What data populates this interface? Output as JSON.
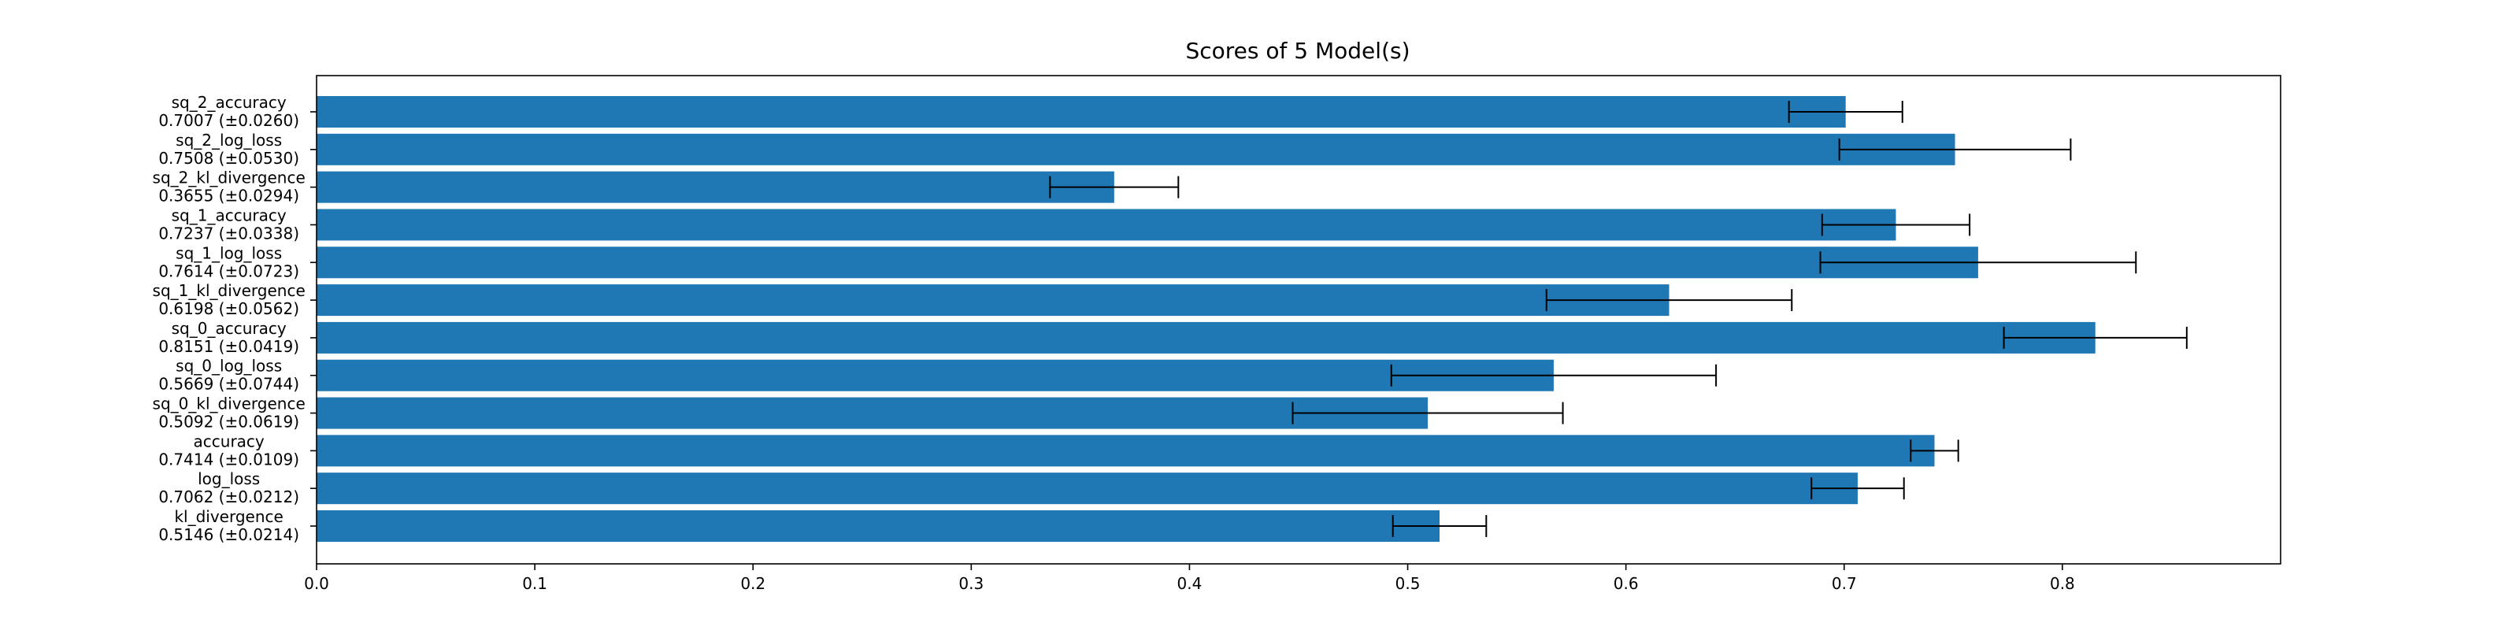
{
  "chart_data": {
    "type": "bar",
    "orientation": "horizontal",
    "title": "Scores of 5 Model(s)",
    "xlabel": "",
    "ylabel": "",
    "xlim": [
      0.0,
      0.9
    ],
    "x_ticks": [
      "0.0",
      "0.1",
      "0.2",
      "0.3",
      "0.4",
      "0.5",
      "0.6",
      "0.7",
      "0.8"
    ],
    "grid": false,
    "bar_color": "#1f77b4",
    "bars": [
      {
        "label": "sq_2_accuracy",
        "value_label": "0.7007 (±0.0260)",
        "value": 0.7007,
        "error": 0.026
      },
      {
        "label": "sq_2_log_loss",
        "value_label": "0.7508 (±0.0530)",
        "value": 0.7508,
        "error": 0.053
      },
      {
        "label": "sq_2_kl_divergence",
        "value_label": "0.3655 (±0.0294)",
        "value": 0.3655,
        "error": 0.0294
      },
      {
        "label": "sq_1_accuracy",
        "value_label": "0.7237 (±0.0338)",
        "value": 0.7237,
        "error": 0.0338
      },
      {
        "label": "sq_1_log_loss",
        "value_label": "0.7614 (±0.0723)",
        "value": 0.7614,
        "error": 0.0723
      },
      {
        "label": "sq_1_kl_divergence",
        "value_label": "0.6198 (±0.0562)",
        "value": 0.6198,
        "error": 0.0562
      },
      {
        "label": "sq_0_accuracy",
        "value_label": "0.8151 (±0.0419)",
        "value": 0.8151,
        "error": 0.0419
      },
      {
        "label": "sq_0_log_loss",
        "value_label": "0.5669 (±0.0744)",
        "value": 0.5669,
        "error": 0.0744
      },
      {
        "label": "sq_0_kl_divergence",
        "value_label": "0.5092 (±0.0619)",
        "value": 0.5092,
        "error": 0.0619
      },
      {
        "label": "accuracy",
        "value_label": "0.7414 (±0.0109)",
        "value": 0.7414,
        "error": 0.0109
      },
      {
        "label": "log_loss",
        "value_label": "0.7062 (±0.0212)",
        "value": 0.7062,
        "error": 0.0212
      },
      {
        "label": "kl_divergence",
        "value_label": "0.5146 (±0.0214)",
        "value": 0.5146,
        "error": 0.0214
      }
    ]
  }
}
